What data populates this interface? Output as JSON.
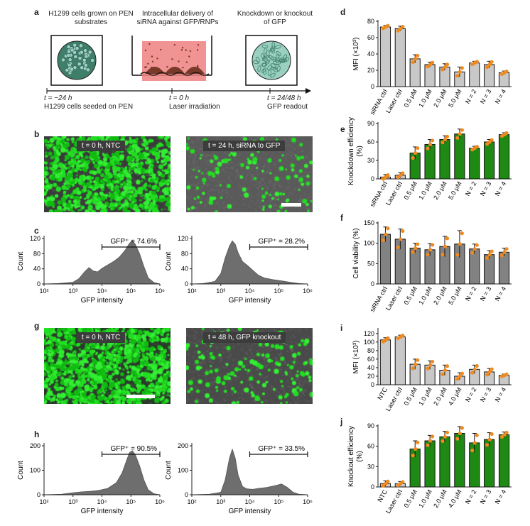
{
  "panels": {
    "a": "a",
    "b": "b",
    "c": "c",
    "d": "d",
    "e": "e",
    "f": "f",
    "g": "g",
    "h": "h",
    "i": "i",
    "j": "j"
  },
  "panel_a": {
    "step1": "H1299 cells grown on PEN substrates",
    "step2": "Intracellular delivery of siRNA against GFP/RNPs",
    "step3": "Knockdown or knockout of GFP",
    "t1": "t = −24 h",
    "t1_desc": "H1299 cells seeded on PEN",
    "t2": "t = 0 h",
    "t2_desc": "Laser irradiation",
    "t3": "t = 24/48 h",
    "t3_desc": "GFP readout",
    "colors": {
      "cell": "#3f7f6a",
      "laser": "#f08080"
    }
  },
  "panel_b": {
    "left_label": "t = 0 h, NTC",
    "right_label": "t = 24 h, siRNA to GFP"
  },
  "panel_g": {
    "left_label": "t = 0 h, NTC",
    "right_label": "t = 48 h, GFP knockout"
  },
  "hist_common": {
    "xlabel": "GFP intensity",
    "ylabel": "Count",
    "xticks": [
      "10²",
      "10³",
      "10⁴",
      "10⁵",
      "10⁶"
    ]
  },
  "chart_data": [
    {
      "id": "c-left",
      "type": "area",
      "xlabel": "GFP intensity",
      "ylabel": "Count",
      "xscale": "log",
      "xlim": [
        100,
        1000000
      ],
      "ylim": [
        0,
        120
      ],
      "yticks": [
        "0",
        "40",
        "80",
        "120"
      ],
      "gate_label": "GFP⁺ = 74.6%",
      "gate": [
        10000,
        1000000
      ],
      "x": [
        2,
        2.5,
        3,
        3.2,
        3.4,
        3.55,
        3.7,
        3.85,
        4,
        4.2,
        4.4,
        4.6,
        4.8,
        4.95,
        5.05,
        5.15,
        5.3,
        5.45,
        5.6,
        5.8,
        6
      ],
      "y": [
        0,
        1,
        4,
        12,
        28,
        38,
        30,
        28,
        36,
        44,
        52,
        62,
        78,
        94,
        100,
        92,
        70,
        40,
        14,
        3,
        0
      ]
    },
    {
      "id": "c-right",
      "type": "area",
      "xlabel": "GFP intensity",
      "ylabel": "Count",
      "xscale": "log",
      "xlim": [
        100,
        1000000
      ],
      "ylim": [
        0,
        120
      ],
      "yticks": [
        "0",
        "40",
        "80",
        "120"
      ],
      "gate_label": "GFP⁺ = 28.2%",
      "gate": [
        10000,
        1000000
      ],
      "x": [
        2,
        2.4,
        2.8,
        3,
        3.15,
        3.3,
        3.4,
        3.5,
        3.6,
        3.75,
        3.9,
        4.1,
        4.3,
        4.5,
        4.8,
        5.1,
        5.4,
        5.7,
        6
      ],
      "y": [
        0,
        1,
        6,
        24,
        60,
        88,
        100,
        92,
        72,
        52,
        44,
        32,
        20,
        14,
        10,
        7,
        4,
        1,
        0
      ]
    },
    {
      "id": "h-left",
      "type": "area",
      "xlabel": "GFP intensity",
      "ylabel": "Count",
      "xscale": "log",
      "xlim": [
        100,
        1000000
      ],
      "ylim": [
        0,
        200
      ],
      "yticks": [
        "0",
        "100",
        "200"
      ],
      "gate_label": "GFP⁺ = 90.5%",
      "gate": [
        10000,
        1000000
      ],
      "x": [
        2,
        2.6,
        3,
        3.3,
        3.6,
        3.9,
        4.2,
        4.5,
        4.7,
        4.85,
        4.95,
        5.05,
        5.15,
        5.3,
        5.45,
        5.6,
        5.8,
        6
      ],
      "y": [
        0,
        2,
        8,
        12,
        14,
        18,
        26,
        50,
        90,
        140,
        172,
        180,
        164,
        118,
        60,
        20,
        4,
        0
      ]
    },
    {
      "id": "h-right",
      "type": "area",
      "xlabel": "GFP intensity",
      "ylabel": "Count",
      "xscale": "log",
      "xlim": [
        100,
        1000000
      ],
      "ylim": [
        0,
        200
      ],
      "yticks": [
        "0",
        "100",
        "200"
      ],
      "gate_label": "GFP⁺ = 33.5%",
      "gate": [
        10000,
        1000000
      ],
      "x": [
        2,
        2.6,
        3,
        3.15,
        3.3,
        3.4,
        3.5,
        3.6,
        3.75,
        3.9,
        4.1,
        4.3,
        4.6,
        4.9,
        5.1,
        5.3,
        5.5,
        5.7,
        6
      ],
      "y": [
        0,
        2,
        10,
        60,
        150,
        186,
        150,
        80,
        34,
        24,
        22,
        26,
        30,
        38,
        44,
        30,
        10,
        2,
        0
      ]
    },
    {
      "id": "d",
      "type": "bar",
      "ylabel": "MFI (×10³)",
      "ylim": [
        0,
        80
      ],
      "yticks": [
        "0",
        "20",
        "40",
        "60",
        "80"
      ],
      "categories": [
        "siRNA ctrl",
        "Laser ctrl",
        "0.5 μM",
        "1.0 μM",
        "2.0 μM",
        "5.0 μM",
        "N = 2",
        "N = 3",
        "N = 4"
      ],
      "values": [
        73,
        71,
        34,
        27,
        24,
        18,
        29,
        27,
        17
      ],
      "errors": [
        2,
        3,
        5,
        3,
        4,
        6,
        2,
        4,
        2
      ],
      "colors": [
        "#c8c8c8",
        "#c8c8c8",
        "#c8c8c8",
        "#c8c8c8",
        "#c8c8c8",
        "#c8c8c8",
        "#c8c8c8",
        "#c8c8c8",
        "#c8c8c8"
      ]
    },
    {
      "id": "e",
      "type": "bar",
      "ylabel": "Knockdown efficiency (%)",
      "ylim": [
        0,
        90
      ],
      "yticks": [
        "0",
        "30",
        "60",
        "90"
      ],
      "categories": [
        "siRNA ctrl",
        "Laser ctrl",
        "0.5 μM",
        "1.0 μM",
        "2.0 μM",
        "5.0 μM",
        "N = 2",
        "N = 3",
        "N = 4"
      ],
      "values": [
        3,
        6,
        42,
        56,
        64,
        73,
        50,
        60,
        72
      ],
      "errors": [
        4,
        4,
        10,
        8,
        6,
        8,
        3,
        4,
        3
      ],
      "colors": [
        "#c8c8c8",
        "#c8c8c8",
        "#1e8a14",
        "#1e8a14",
        "#1e8a14",
        "#1e8a14",
        "#1e8a14",
        "#1e8a14",
        "#1e8a14"
      ]
    },
    {
      "id": "f",
      "type": "bar",
      "ylabel": "Cell viability (%)",
      "ylim": [
        0,
        150
      ],
      "yticks": [
        "0",
        "50",
        "100",
        "150"
      ],
      "categories": [
        "siRNA ctrl",
        "Laser ctrl",
        "0.5 μM",
        "1.0 μM",
        "2.0 μM",
        "5.0 μM",
        "N = 2",
        "N = 3",
        "N = 4"
      ],
      "values": [
        122,
        110,
        88,
        84,
        92,
        98,
        86,
        72,
        78
      ],
      "errors": [
        18,
        25,
        12,
        15,
        25,
        33,
        12,
        10,
        10
      ],
      "colors": [
        "#828282",
        "#828282",
        "#828282",
        "#828282",
        "#828282",
        "#828282",
        "#828282",
        "#828282",
        "#828282"
      ]
    },
    {
      "id": "i",
      "type": "bar",
      "ylabel": "MFI (×10³)",
      "ylim": [
        0,
        150
      ],
      "yticks": [
        "0",
        "20",
        "40",
        "60",
        "80",
        "100",
        "120"
      ],
      "ymax_tick": 120,
      "categories": [
        "NTC",
        "Laser ctrl",
        "0.5 μM",
        "1.0 μM",
        "2.0 μM",
        "4.0 μM",
        "N = 2",
        "N = 3",
        "N = 4"
      ],
      "values": [
        105,
        112,
        48,
        46,
        34,
        20,
        36,
        30,
        22
      ],
      "errors": [
        5,
        4,
        12,
        10,
        12,
        8,
        10,
        8,
        3
      ],
      "colors": [
        "#c8c8c8",
        "#c8c8c8",
        "#c8c8c8",
        "#c8c8c8",
        "#c8c8c8",
        "#c8c8c8",
        "#c8c8c8",
        "#c8c8c8",
        "#c8c8c8"
      ]
    },
    {
      "id": "j",
      "type": "bar",
      "ylabel": "Knockout efficiency (%)",
      "ylim": [
        0,
        90
      ],
      "yticks": [
        "0",
        "30",
        "60",
        "90"
      ],
      "categories": [
        "NTC",
        "Laser ctrl",
        "0.5 μM",
        "1.0 μM",
        "2.0 μM",
        "4.0 μM",
        "N = 2",
        "N = 3",
        "N = 4"
      ],
      "values": [
        5,
        5,
        56,
        68,
        74,
        79,
        65,
        70,
        77
      ],
      "errors": [
        4,
        3,
        12,
        8,
        8,
        10,
        14,
        10,
        4
      ],
      "colors": [
        "#c8c8c8",
        "#c8c8c8",
        "#1e8a14",
        "#1e8a14",
        "#1e8a14",
        "#1e8a14",
        "#1e8a14",
        "#1e8a14",
        "#1e8a14"
      ]
    }
  ]
}
